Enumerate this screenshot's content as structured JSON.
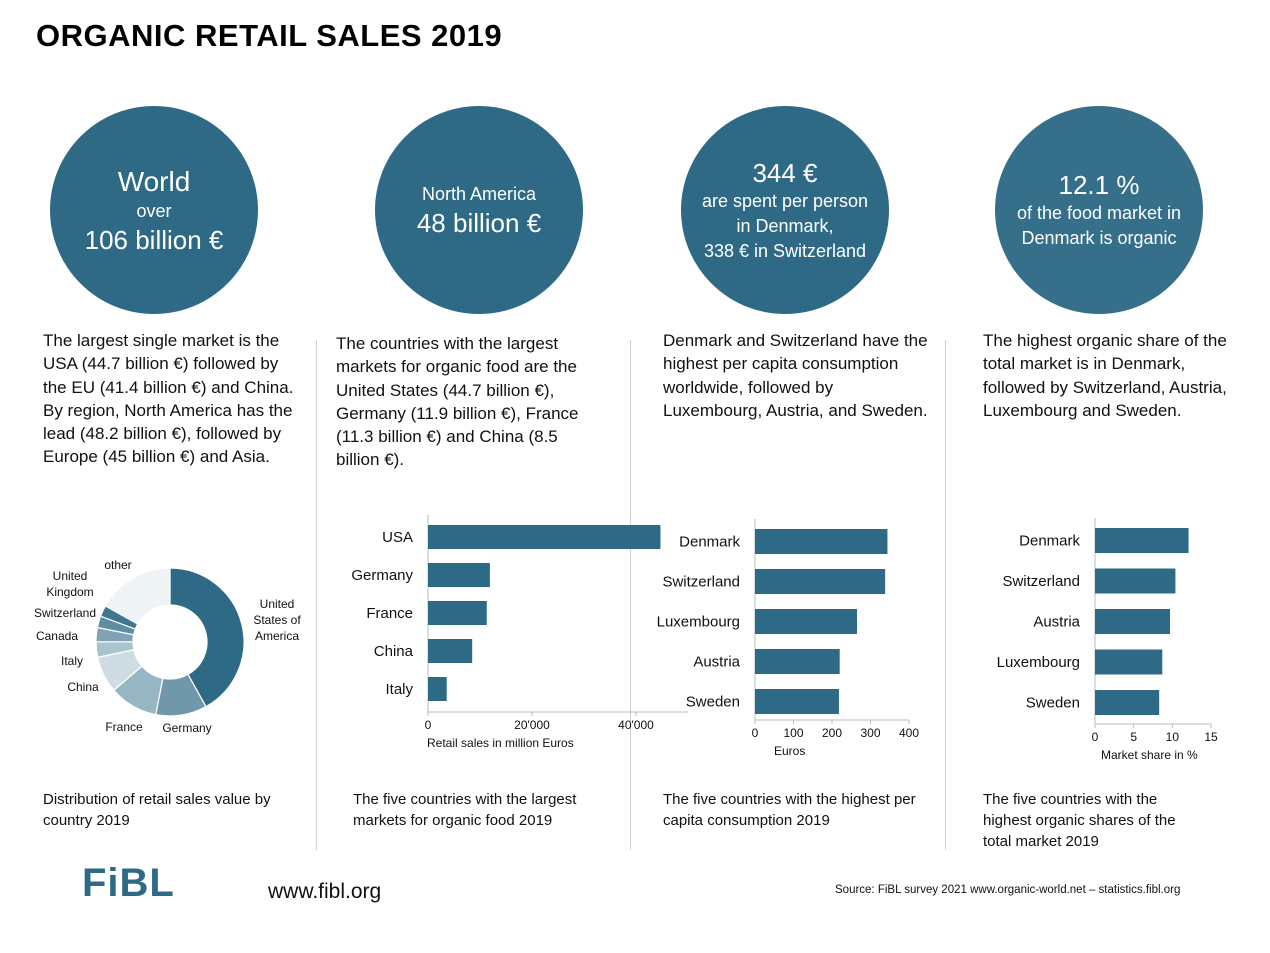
{
  "title": "ORGANIC RETAIL SALES 2019",
  "circles": {
    "world": {
      "line1": "World",
      "line2": "over",
      "line3": "106 billion €"
    },
    "north_america": {
      "line1": "North America",
      "line2": "48 billion €"
    },
    "per_capita": {
      "line1": "344 €",
      "line2": "are spent per person in Denmark,",
      "line3": "338 € in Switzerland"
    },
    "share": {
      "line1": "12.1 %",
      "line2": "of  the food market in Denmark is organic"
    }
  },
  "paragraphs": {
    "p1": "The largest single market is the USA (44.7 billion €) followed by the EU (41.4 billion €) and China. By region, North America has the lead (48.2 billion €), followed by Europe (45 billion €) and Asia.",
    "p2": "The countries with the largest markets for organic food are the United States (44.7 billion €), Germany (11.9 billion €), France (11.3 billion €) and China (8.5 billion €).",
    "p3": "Denmark and Switzerland have the highest per capita consumption worldwide, followed by Luxembourg, Austria, and Sweden.",
    "p4": "The highest organic share of the total market is in Denmark, followed by Switzerland, Austria, Luxembourg and Sweden."
  },
  "captions": {
    "c1": "Distribution of retail sales value by country 2019",
    "c2": "The five countries with the largest markets for organic food 2019",
    "c3": "The five countries with the highest per capita consumption 2019",
    "c4": "The five countries with the highest organic shares of the total market 2019"
  },
  "colors": {
    "accent": "#2e6a86"
  },
  "chart_data": [
    {
      "type": "pie",
      "title": "",
      "donut": true,
      "categories": [
        "United States of America",
        "Germany",
        "France",
        "China",
        "Italy",
        "Canada",
        "Switzerland",
        "United Kingdom",
        "other"
      ],
      "values": [
        44.7,
        11.9,
        11.3,
        8.5,
        3.6,
        3.3,
        2.7,
        2.6,
        18.0
      ],
      "colors": [
        "#2e6a86",
        "#6f98ab",
        "#97b6c4",
        "#cfdde3",
        "#a8c2ce",
        "#7fa3b4",
        "#5e8ea3",
        "#3f7690",
        "#eef3f5"
      ],
      "labels": [
        {
          "text": "United",
          "text2": "States of",
          "text3": "America"
        },
        {
          "text": "Germany"
        },
        {
          "text": "France"
        },
        {
          "text": "China"
        },
        {
          "text": "Italy"
        },
        {
          "text": "Canada"
        },
        {
          "text": "Switzerland"
        },
        {
          "text": "United",
          "text2": "Kingdom"
        },
        {
          "text": "other"
        }
      ]
    },
    {
      "type": "bar",
      "orientation": "horizontal",
      "title": "",
      "categories": [
        "USA",
        "Germany",
        "France",
        "China",
        "Italy"
      ],
      "values": [
        44700,
        11900,
        11300,
        8500,
        3600
      ],
      "xlabel": "Retail sales in million Euros",
      "ylabel": "",
      "xlim": [
        0,
        50000
      ],
      "ticks": [
        0,
        20000,
        40000
      ],
      "tick_labels": [
        "0",
        "20'000",
        "40'000"
      ]
    },
    {
      "type": "bar",
      "orientation": "horizontal",
      "title": "",
      "categories": [
        "Denmark",
        "Switzerland",
        "Luxembourg",
        "Austria",
        "Sweden"
      ],
      "values": [
        344,
        338,
        265,
        220,
        218
      ],
      "xlabel": "Euros",
      "ylabel": "",
      "xlim": [
        0,
        400
      ],
      "ticks": [
        0,
        100,
        200,
        300,
        400
      ],
      "tick_labels": [
        "0",
        "100",
        "200",
        "300",
        "400"
      ]
    },
    {
      "type": "bar",
      "orientation": "horizontal",
      "title": "",
      "categories": [
        "Denmark",
        "Switzerland",
        "Austria",
        "Luxembourg",
        "Sweden"
      ],
      "values": [
        12.1,
        10.4,
        9.7,
        8.7,
        8.3
      ],
      "xlabel": "Market share in %",
      "ylabel": "",
      "xlim": [
        0,
        15
      ],
      "ticks": [
        0,
        5,
        10,
        15
      ],
      "tick_labels": [
        "0",
        "5",
        "10",
        "15"
      ]
    }
  ],
  "footer": {
    "logo": "FiBL",
    "url": "www.fibl.org",
    "source": "Source: FiBL survey 2021  www.organic-world.net – statistics.fibl.org"
  }
}
